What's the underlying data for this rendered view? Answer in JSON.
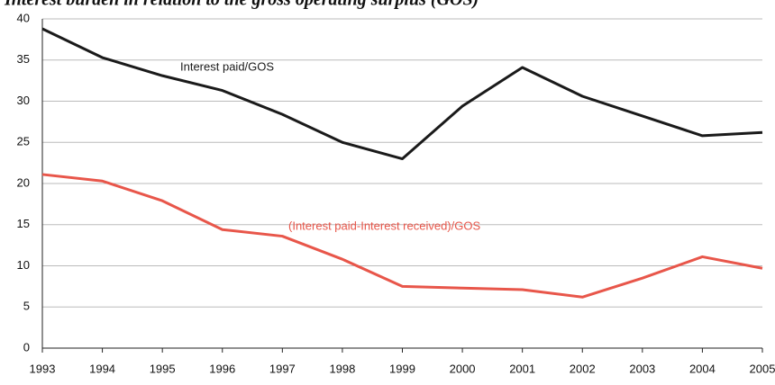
{
  "chart_data": {
    "type": "line",
    "title": "Interest burden in relation to the gross operating surplus (GOS)",
    "categories": [
      "1993",
      "1994",
      "1995",
      "1996",
      "1997",
      "1998",
      "1999",
      "2000",
      "2001",
      "2002",
      "2003",
      "2004",
      "2005"
    ],
    "series": [
      {
        "name": "Interest paid/GOS",
        "color": "#1a1a1a",
        "values": [
          38.8,
          35.3,
          33.1,
          31.3,
          28.4,
          25.0,
          23.0,
          29.4,
          34.1,
          30.6,
          28.2,
          25.8,
          26.2
        ]
      },
      {
        "name": "(Interest paid-Interest received)/GOS",
        "color": "#e8564a",
        "values": [
          21.1,
          20.3,
          17.9,
          14.4,
          13.6,
          10.8,
          7.5,
          7.3,
          7.1,
          6.2,
          8.5,
          11.1,
          9.7
        ]
      }
    ],
    "ylim": [
      0,
      40
    ],
    "yticks": [
      0,
      5,
      10,
      15,
      20,
      25,
      30,
      35,
      40
    ],
    "grid": true
  }
}
